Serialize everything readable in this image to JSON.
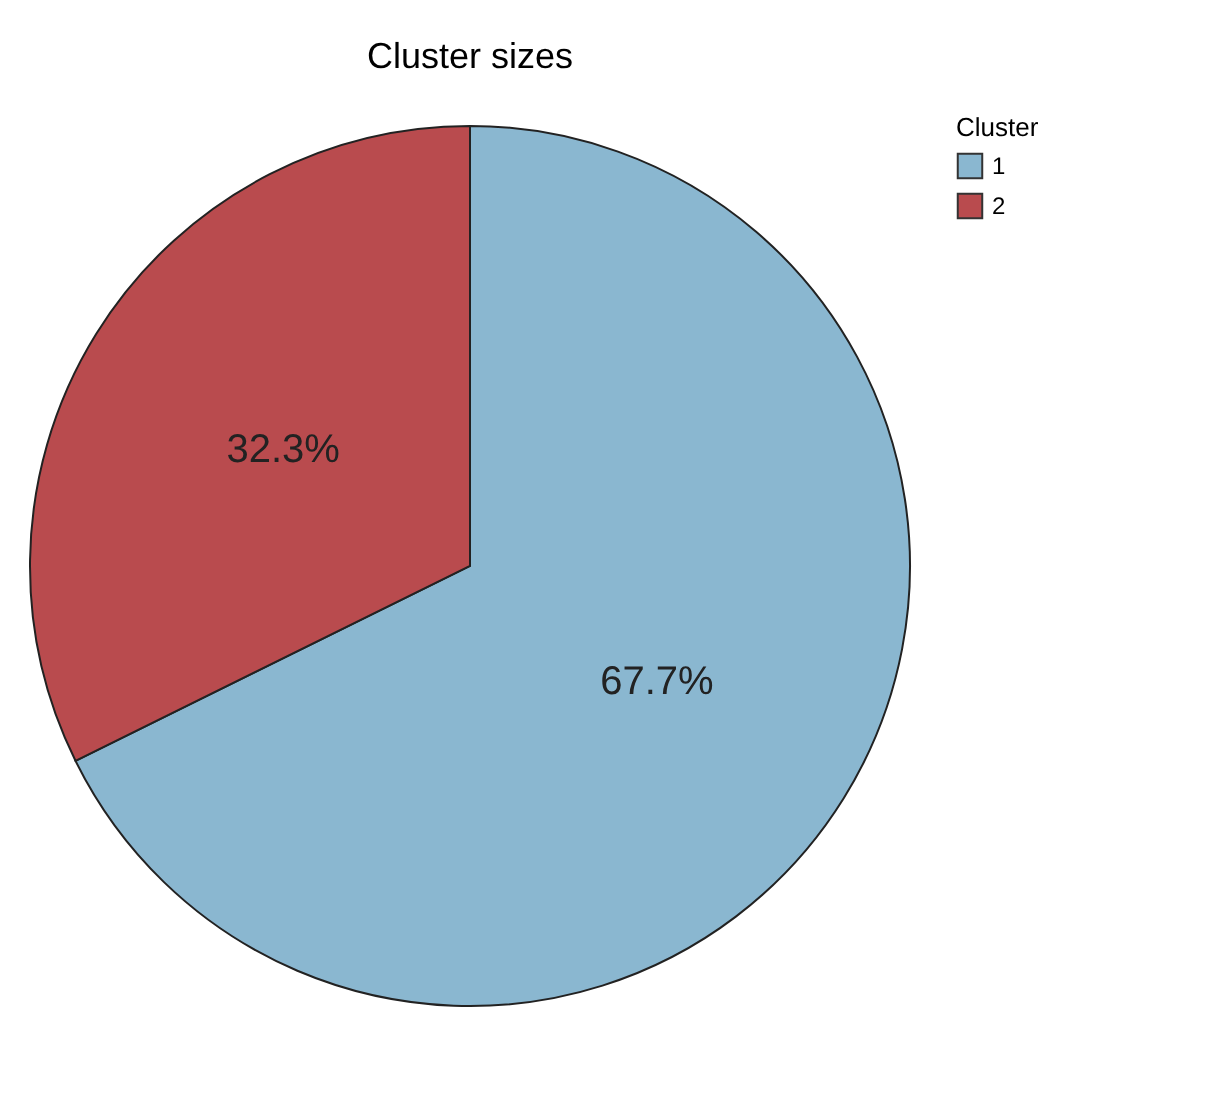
{
  "chart_data": {
    "type": "pie",
    "title": "Cluster sizes",
    "legend_title": "Cluster",
    "legend": "top right",
    "categories": [
      "1",
      "2"
    ],
    "values": [
      67.7,
      32.3
    ],
    "colors": [
      "#8ab7d0",
      "#b94b4e"
    ],
    "value_labels": [
      "67.7%",
      "32.3%"
    ]
  }
}
